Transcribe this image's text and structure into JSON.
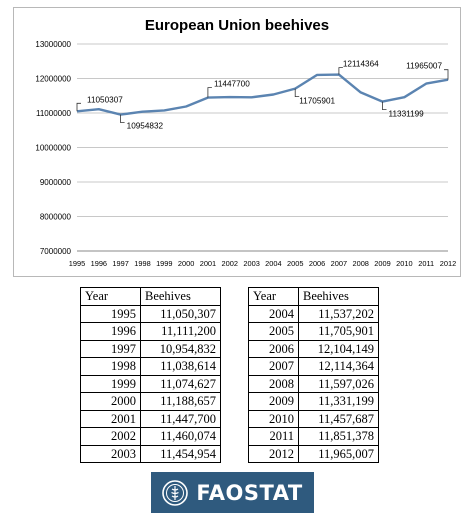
{
  "chart_data": {
    "type": "line",
    "title": "European Union beehives",
    "x": [
      1995,
      1996,
      1997,
      1998,
      1999,
      2000,
      2001,
      2002,
      2003,
      2004,
      2005,
      2006,
      2007,
      2008,
      2009,
      2010,
      2011,
      2012
    ],
    "x_tick_labels": [
      "1995",
      "1996",
      "1997",
      "1998",
      "1999",
      "2000",
      "2001",
      "2002",
      "2003",
      "2004",
      "2005",
      "2006",
      "2007",
      "2008",
      "2009",
      "2010",
      "2011",
      "2012"
    ],
    "values": [
      11050307,
      11111200,
      10954832,
      11038614,
      11074627,
      11188657,
      11447700,
      11460074,
      11454954,
      11537202,
      11705901,
      12104149,
      12114364,
      11597026,
      11331199,
      11457687,
      11851378,
      11965007
    ],
    "ylim": [
      7000000,
      13000000
    ],
    "y_ticks": [
      "7000000",
      "8000000",
      "9000000",
      "10000000",
      "11000000",
      "12000000",
      "13000000"
    ],
    "grid": "horizontal",
    "line_color": "#5b84b1",
    "annotations": [
      {
        "year": 1995,
        "label": "11050307"
      },
      {
        "year": 1997,
        "label": "10954832"
      },
      {
        "year": 2001,
        "label": "11447700"
      },
      {
        "year": 2005,
        "label": "11705901"
      },
      {
        "year": 2007,
        "label": "12114364"
      },
      {
        "year": 2009,
        "label": "11331199"
      },
      {
        "year": 2012,
        "label": "11965007"
      }
    ]
  },
  "table_left": {
    "headers": [
      "Year",
      "Beehives"
    ],
    "rows": [
      [
        "1995",
        "11,050,307"
      ],
      [
        "1996",
        "11,111,200"
      ],
      [
        "1997",
        "10,954,832"
      ],
      [
        "1998",
        "11,038,614"
      ],
      [
        "1999",
        "11,074,627"
      ],
      [
        "2000",
        "11,188,657"
      ],
      [
        "2001",
        "11,447,700"
      ],
      [
        "2002",
        "11,460,074"
      ],
      [
        "2003",
        "11,454,954"
      ]
    ]
  },
  "table_right": {
    "headers": [
      "Year",
      "Beehives"
    ],
    "rows": [
      [
        "2004",
        "11,537,202"
      ],
      [
        "2005",
        "11,705,901"
      ],
      [
        "2006",
        "12,104,149"
      ],
      [
        "2007",
        "12,114,364"
      ],
      [
        "2008",
        "11,597,026"
      ],
      [
        "2009",
        "11,331,199"
      ],
      [
        "2010",
        "11,457,687"
      ],
      [
        "2011",
        "11,851,378"
      ],
      [
        "2012",
        "11,965,007"
      ]
    ]
  },
  "logo": {
    "text": "FAOSTAT",
    "background": "#2f5a7e",
    "icon": "fao-emblem-icon"
  }
}
